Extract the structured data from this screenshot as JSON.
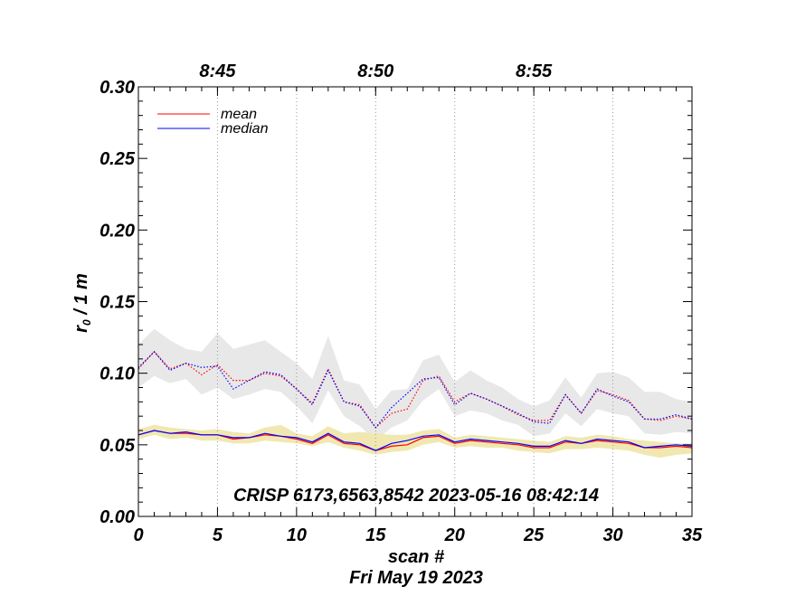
{
  "chart_data": {
    "type": "line",
    "annotation": "CRISP 6173,6563,8542 2023-05-16 08:42:14",
    "xlabel": "scan #",
    "date_label": "Fri May 19 2023",
    "ylabel_main": "r",
    "ylabel_sub": "0",
    "ylabel_rest": " / 1 m",
    "xlim": [
      0,
      35
    ],
    "ylim": [
      0,
      0.3
    ],
    "x_ticks": [
      0,
      5,
      10,
      15,
      20,
      25,
      30,
      35
    ],
    "x_tick_labels": [
      "0",
      "5",
      "10",
      "15",
      "20",
      "25",
      "30",
      "35"
    ],
    "y_ticks": [
      0,
      0.05,
      0.1,
      0.15,
      0.2,
      0.25,
      0.3
    ],
    "y_tick_labels": [
      "0.00",
      "0.05",
      "0.10",
      "0.15",
      "0.20",
      "0.25",
      "0.30"
    ],
    "top_axis_labels": [
      {
        "x": 5,
        "label": "8:45"
      },
      {
        "x": 15,
        "label": "8:50"
      },
      {
        "x": 25,
        "label": "8:55"
      }
    ],
    "grid_x": [
      5,
      10,
      15,
      20,
      25,
      30
    ],
    "legend": [
      {
        "name": "mean",
        "color": "#ff0000"
      },
      {
        "name": "median",
        "color": "#0000ff"
      }
    ],
    "x": [
      0,
      1,
      2,
      3,
      4,
      5,
      6,
      7,
      8,
      9,
      10,
      11,
      12,
      13,
      14,
      15,
      16,
      17,
      18,
      19,
      20,
      21,
      22,
      23,
      24,
      25,
      26,
      27,
      28,
      29,
      30,
      31,
      32,
      33,
      34,
      35
    ],
    "series": [
      {
        "name": "upper mean",
        "color": "#ff0000",
        "style": "dotted",
        "values": [
          0.103,
          0.115,
          0.103,
          0.107,
          0.099,
          0.106,
          0.095,
          0.095,
          0.1,
          0.098,
          0.089,
          0.079,
          0.103,
          0.08,
          0.078,
          0.062,
          0.072,
          0.075,
          0.095,
          0.098,
          0.08,
          0.086,
          0.082,
          0.077,
          0.071,
          0.067,
          0.067,
          0.085,
          0.072,
          0.088,
          0.085,
          0.081,
          0.068,
          0.067,
          0.07,
          0.068
        ]
      },
      {
        "name": "upper median",
        "color": "#0000ff",
        "style": "dotted",
        "values": [
          0.104,
          0.115,
          0.102,
          0.107,
          0.104,
          0.105,
          0.089,
          0.095,
          0.101,
          0.099,
          0.089,
          0.078,
          0.102,
          0.08,
          0.077,
          0.062,
          0.076,
          0.086,
          0.096,
          0.097,
          0.078,
          0.086,
          0.082,
          0.077,
          0.072,
          0.066,
          0.065,
          0.085,
          0.072,
          0.089,
          0.084,
          0.08,
          0.068,
          0.068,
          0.071,
          0.068
        ]
      },
      {
        "name": "lower mean",
        "color": "#ff0000",
        "style": "solid",
        "values": [
          0.057,
          0.06,
          0.058,
          0.058,
          0.057,
          0.057,
          0.054,
          0.055,
          0.057,
          0.056,
          0.054,
          0.051,
          0.057,
          0.051,
          0.05,
          0.046,
          0.049,
          0.05,
          0.055,
          0.056,
          0.051,
          0.053,
          0.052,
          0.051,
          0.05,
          0.048,
          0.048,
          0.052,
          0.051,
          0.053,
          0.052,
          0.051,
          0.048,
          0.048,
          0.049,
          0.048
        ]
      },
      {
        "name": "lower median",
        "color": "#0000ff",
        "style": "solid",
        "values": [
          0.057,
          0.06,
          0.058,
          0.059,
          0.057,
          0.057,
          0.055,
          0.055,
          0.058,
          0.056,
          0.055,
          0.052,
          0.058,
          0.052,
          0.051,
          0.046,
          0.051,
          0.053,
          0.056,
          0.057,
          0.052,
          0.054,
          0.053,
          0.052,
          0.051,
          0.049,
          0.049,
          0.053,
          0.051,
          0.054,
          0.053,
          0.052,
          0.048,
          0.049,
          0.05,
          0.049
        ]
      }
    ],
    "bands": [
      {
        "name": "upper spread",
        "color": "#e8e8e8",
        "lower": [
          0.09,
          0.098,
          0.093,
          0.096,
          0.085,
          0.09,
          0.082,
          0.085,
          0.089,
          0.087,
          0.077,
          0.065,
          0.088,
          0.07,
          0.063,
          0.053,
          0.062,
          0.067,
          0.081,
          0.089,
          0.07,
          0.074,
          0.072,
          0.067,
          0.064,
          0.056,
          0.058,
          0.072,
          0.063,
          0.075,
          0.072,
          0.07,
          0.058,
          0.057,
          0.059,
          0.058
        ],
        "upper": [
          0.12,
          0.131,
          0.123,
          0.117,
          0.115,
          0.128,
          0.117,
          0.12,
          0.123,
          0.115,
          0.107,
          0.096,
          0.126,
          0.095,
          0.092,
          0.075,
          0.088,
          0.089,
          0.109,
          0.113,
          0.094,
          0.102,
          0.095,
          0.09,
          0.082,
          0.077,
          0.081,
          0.097,
          0.083,
          0.1,
          0.101,
          0.097,
          0.087,
          0.087,
          0.082,
          0.08
        ]
      },
      {
        "name": "lower spread",
        "color": "#f0e8b0",
        "lower": [
          0.054,
          0.057,
          0.054,
          0.055,
          0.053,
          0.053,
          0.051,
          0.051,
          0.053,
          0.052,
          0.051,
          0.049,
          0.052,
          0.048,
          0.046,
          0.043,
          0.045,
          0.046,
          0.05,
          0.052,
          0.048,
          0.049,
          0.048,
          0.048,
          0.046,
          0.045,
          0.044,
          0.047,
          0.047,
          0.048,
          0.047,
          0.046,
          0.043,
          0.041,
          0.043,
          0.044
        ],
        "upper": [
          0.061,
          0.064,
          0.062,
          0.061,
          0.06,
          0.061,
          0.059,
          0.058,
          0.062,
          0.064,
          0.058,
          0.056,
          0.063,
          0.058,
          0.059,
          0.058,
          0.057,
          0.057,
          0.06,
          0.061,
          0.055,
          0.057,
          0.056,
          0.055,
          0.054,
          0.053,
          0.052,
          0.056,
          0.055,
          0.057,
          0.056,
          0.054,
          0.053,
          0.052,
          0.051,
          0.051
        ]
      }
    ]
  }
}
